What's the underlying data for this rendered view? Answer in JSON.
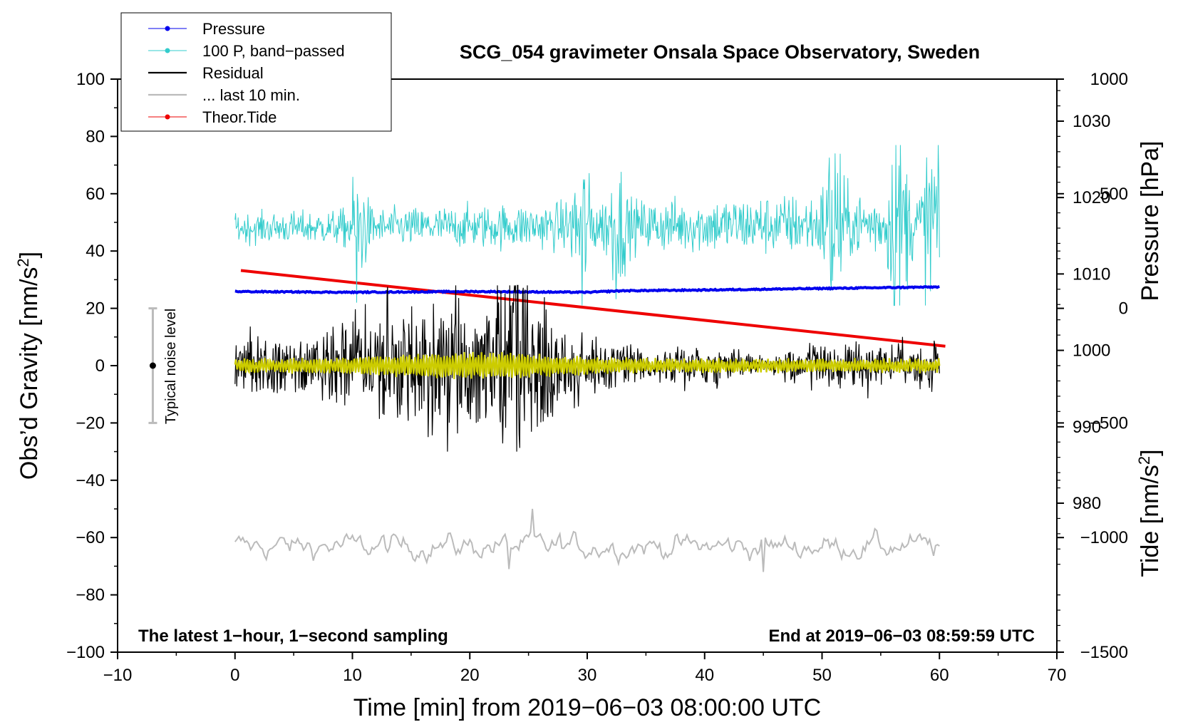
{
  "chart_data": {
    "type": "line",
    "title": "SCG_054 gravimeter Onsala Space Observatory, Sweden",
    "xlabel": "Time [min] from 2019−06−03 08:00:00 UTC",
    "ylabel_left": "Obs’d Gravity [nm/s",
    "ylabel_left_sup": "2",
    "ylabel_left_close": "]",
    "ylabel_right_pressure": "Pressure [hPa]",
    "ylabel_right_tide": "Tide [nm/s",
    "ylabel_right_tide_sup": "2",
    "ylabel_right_tide_close": "]",
    "xlim": [
      -10,
      70
    ],
    "ylim_left": [
      -100,
      100
    ],
    "pressure_lim": [
      960.5,
      1035.5
    ],
    "tide_lim": [
      -1500,
      1000
    ],
    "x_ticks": [
      "−10",
      "0",
      "10",
      "20",
      "30",
      "40",
      "50",
      "60",
      "70"
    ],
    "x_tick_values": [
      -10,
      0,
      10,
      20,
      30,
      40,
      50,
      60,
      70
    ],
    "y_left_ticks": [
      "100",
      "80",
      "60",
      "40",
      "20",
      "0",
      "−20",
      "−40",
      "−60",
      "−80",
      "−100"
    ],
    "y_left_tick_values": [
      100,
      80,
      60,
      40,
      20,
      0,
      -20,
      -40,
      -60,
      -80,
      -100
    ],
    "pressure_ticks": [
      "1030",
      "1020",
      "1010",
      "1000",
      "990",
      "980"
    ],
    "pressure_tick_values": [
      1030,
      1020,
      1010,
      1000,
      990,
      980
    ],
    "tide_ticks": [
      "1000",
      "500",
      "0",
      "−500",
      "−1000",
      "−1500"
    ],
    "tide_tick_values": [
      1000,
      500,
      0,
      -500,
      -1000,
      -1500
    ],
    "legend": [
      {
        "label": "Pressure",
        "color": "#0000ee",
        "marker": true
      },
      {
        "label": "100 P, band−passed",
        "color": "#33cccc",
        "marker": true
      },
      {
        "label": "Residual",
        "color": "#000000",
        "marker": false
      },
      {
        "label": "... last 10 min.",
        "color": "#bbbbbb",
        "marker": false
      },
      {
        "label": "Theor.Tide",
        "color": "#ee0000",
        "marker": true
      }
    ],
    "annotations": {
      "left": "The latest 1−hour, 1−second sampling",
      "right": "End at 2019−06−03 08:59:59 UTC"
    },
    "noise_bar": {
      "label": "Typical noise level",
      "x": -7,
      "center": 0,
      "low": -20,
      "high": 20
    },
    "series": [
      {
        "name": "Pressure",
        "color": "#0000ee",
        "axis": "pressure",
        "x": [
          0,
          10,
          20,
          30,
          33,
          40,
          50,
          60
        ],
        "values": [
          1007.7,
          1007.6,
          1007.7,
          1007.6,
          1007.8,
          1007.9,
          1008.1,
          1008.3
        ]
      },
      {
        "name": "100 P, band−passed",
        "color": "#33cccc",
        "axis": "left",
        "baseline": 48,
        "x_range": [
          0,
          60
        ],
        "typical_range": [
          40,
          62
        ],
        "extremes": {
          "min": 21,
          "max": 77
        }
      },
      {
        "name": "Residual",
        "color": "#000000",
        "axis": "left",
        "baseline": 0,
        "x_range": [
          0,
          60
        ],
        "extremes": {
          "min": -30,
          "max": 28
        }
      },
      {
        "name": "Residual smoothed",
        "color": "#cccc00",
        "axis": "left",
        "baseline": 0,
        "x_range": [
          0,
          60
        ]
      },
      {
        "name": "... last 10 min.",
        "color": "#bbbbbb",
        "axis": "left",
        "baseline": -63,
        "x_range": [
          0,
          60
        ],
        "extremes": {
          "min": -72,
          "max": -50
        }
      },
      {
        "name": "Theor.Tide",
        "color": "#ee0000",
        "axis": "tide",
        "x": [
          0.5,
          60.5
        ],
        "values": [
          165,
          -165
        ]
      }
    ]
  }
}
